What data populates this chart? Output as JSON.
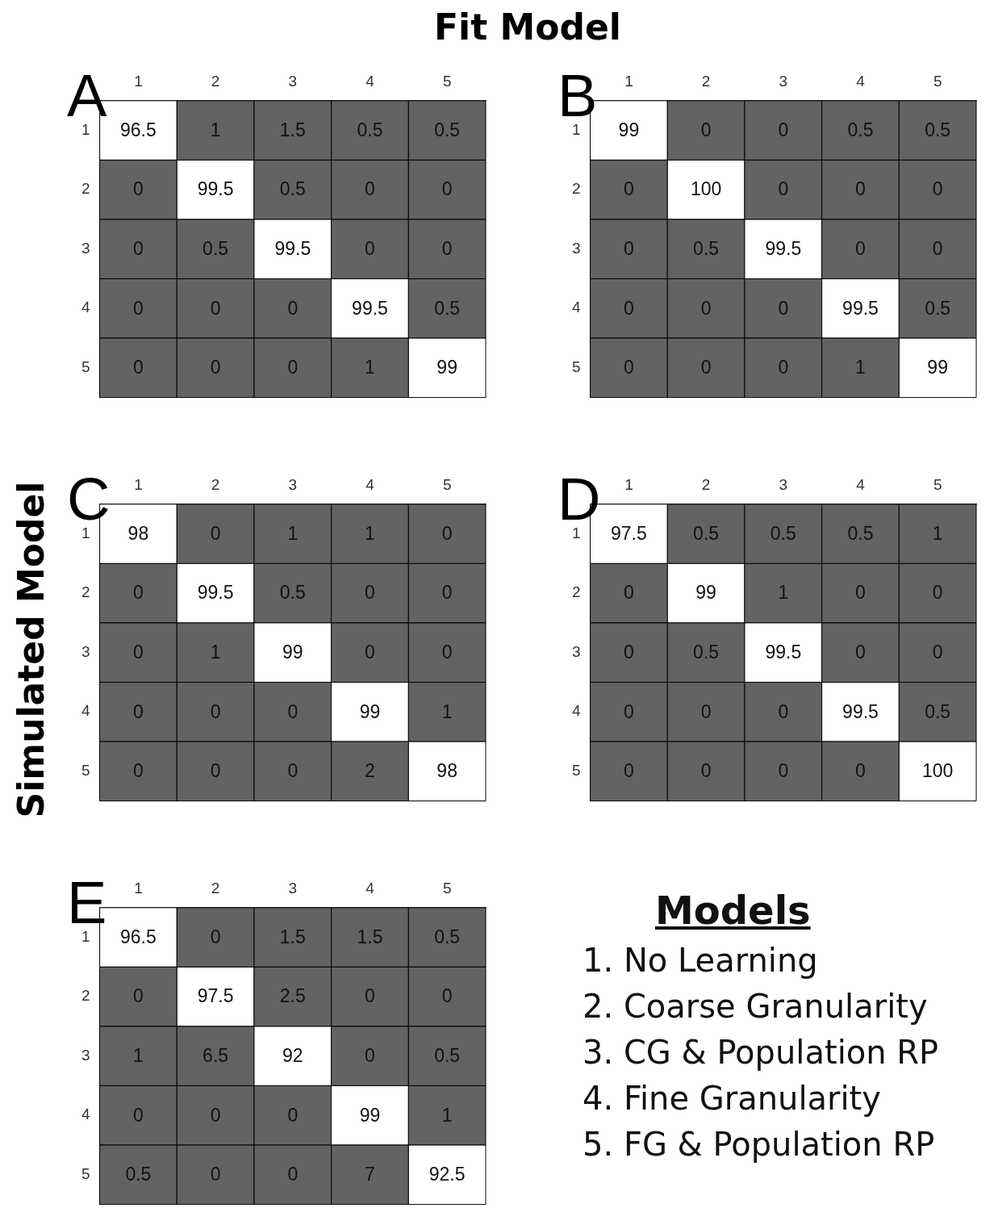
{
  "chart_data": [
    {
      "type": "heatmap",
      "title": "A",
      "xlabel": "Fit Model",
      "categories": [
        "1",
        "2",
        "3",
        "4",
        "5"
      ],
      "y_categories": [
        "1",
        "2",
        "3",
        "4",
        "5"
      ],
      "data_labels": true,
      "cells": [
        [
          96.5,
          1,
          1.5,
          0.5,
          0.5
        ],
        [
          0,
          99.5,
          0.5,
          0,
          0
        ],
        [
          0,
          0.5,
          99.5,
          0,
          0
        ],
        [
          0,
          0,
          0,
          99.5,
          0.5
        ],
        [
          0,
          0,
          0,
          1,
          99
        ]
      ]
    },
    {
      "type": "heatmap",
      "title": "B",
      "categories": [
        "1",
        "2",
        "3",
        "4",
        "5"
      ],
      "y_categories": [
        "1",
        "2",
        "3",
        "4",
        "5"
      ],
      "data_labels": true,
      "cells": [
        [
          99,
          0,
          0,
          0.5,
          0.5
        ],
        [
          0,
          100,
          0,
          0,
          0
        ],
        [
          0,
          0.5,
          99.5,
          0,
          0
        ],
        [
          0,
          0,
          0,
          99.5,
          0.5
        ],
        [
          0,
          0,
          0,
          1,
          99
        ]
      ]
    },
    {
      "type": "heatmap",
      "title": "C",
      "ylabel": "Simulated Model",
      "categories": [
        "1",
        "2",
        "3",
        "4",
        "5"
      ],
      "y_categories": [
        "1",
        "2",
        "3",
        "4",
        "5"
      ],
      "data_labels": true,
      "cells": [
        [
          98,
          0,
          1,
          1,
          0
        ],
        [
          0,
          99.5,
          0.5,
          0,
          0
        ],
        [
          0,
          1,
          99,
          0,
          0
        ],
        [
          0,
          0,
          0,
          99,
          1
        ],
        [
          0,
          0,
          0,
          2,
          98
        ]
      ]
    },
    {
      "type": "heatmap",
      "title": "D",
      "categories": [
        "1",
        "2",
        "3",
        "4",
        "5"
      ],
      "y_categories": [
        "1",
        "2",
        "3",
        "4",
        "5"
      ],
      "data_labels": true,
      "cells": [
        [
          97.5,
          0.5,
          0.5,
          0.5,
          1
        ],
        [
          0,
          99,
          1,
          0,
          0
        ],
        [
          0,
          0.5,
          99.5,
          0,
          0
        ],
        [
          0,
          0,
          0,
          99.5,
          0.5
        ],
        [
          0,
          0,
          0,
          0,
          100
        ]
      ]
    },
    {
      "type": "heatmap",
      "title": "E",
      "categories": [
        "1",
        "2",
        "3",
        "4",
        "5"
      ],
      "y_categories": [
        "1",
        "2",
        "3",
        "4",
        "5"
      ],
      "data_labels": true,
      "cells": [
        [
          96.5,
          0,
          1.5,
          1.5,
          0.5
        ],
        [
          0,
          97.5,
          2.5,
          0,
          0
        ],
        [
          1,
          6.5,
          92,
          0,
          0.5
        ],
        [
          0,
          0,
          0,
          99,
          1
        ],
        [
          0.5,
          0,
          0,
          7,
          92.5
        ]
      ]
    },
    {
      "type": "other",
      "title": "Models",
      "annotations": [
        "1. No Learning",
        "2. Coarse Granularity",
        "3. CG & Population RP",
        "4. Fine Granularity",
        "5. FG & Population RP"
      ]
    }
  ]
}
